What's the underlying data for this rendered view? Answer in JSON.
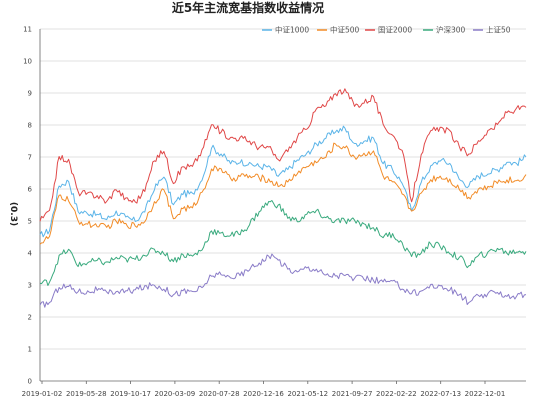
{
  "chart_data": {
    "type": "line",
    "title": "近5年主流宽基指数收益情况",
    "xlabel": "",
    "ylabel": "(0.3)",
    "ylim": [
      0,
      11
    ],
    "yticks": [
      0,
      1,
      2,
      3,
      4,
      5,
      6,
      7,
      8,
      9,
      10,
      11
    ],
    "grid": true,
    "legend_position": "top-right",
    "x_tick_labels": [
      "2019-01-02",
      "2019-05-28",
      "2019-10-17",
      "2020-03-09",
      "2020-07-28",
      "2020-12-16",
      "2021-05-12",
      "2021-09-27",
      "2022-02-22",
      "2022-07-13",
      "2022-12-01"
    ],
    "x": [
      "2019-01",
      "2019-02",
      "2019-03",
      "2019-04",
      "2019-05",
      "2019-06",
      "2019-07",
      "2019-08",
      "2019-09",
      "2019-10",
      "2019-11",
      "2019-12",
      "2020-01",
      "2020-02",
      "2020-03",
      "2020-04",
      "2020-05",
      "2020-06",
      "2020-07",
      "2020-08",
      "2020-09",
      "2020-10",
      "2020-11",
      "2020-12",
      "2021-01",
      "2021-02",
      "2021-03",
      "2021-04",
      "2021-05",
      "2021-06",
      "2021-07",
      "2021-08",
      "2021-09",
      "2021-10",
      "2021-11",
      "2021-12",
      "2022-01",
      "2022-02",
      "2022-03",
      "2022-04",
      "2022-05",
      "2022-06",
      "2022-07",
      "2022-08",
      "2022-09",
      "2022-10",
      "2022-11",
      "2022-12",
      "2023-01",
      "2023-02",
      "2023-03",
      "2023-04"
    ],
    "series": [
      {
        "name": "中证1000",
        "color": "#5bb4e8",
        "values": [
          4.55,
          4.7,
          6.1,
          6.25,
          5.3,
          5.25,
          5.2,
          5.05,
          5.3,
          5.1,
          5.0,
          5.3,
          6.0,
          6.4,
          5.5,
          5.85,
          5.85,
          6.3,
          7.3,
          7.1,
          6.8,
          6.85,
          6.8,
          6.7,
          6.7,
          6.4,
          6.6,
          6.9,
          7.1,
          7.4,
          7.6,
          7.8,
          7.9,
          7.4,
          7.5,
          7.6,
          6.8,
          6.6,
          6.2,
          5.3,
          6.2,
          6.7,
          6.9,
          6.8,
          6.3,
          6.1,
          6.4,
          6.5,
          6.6,
          6.85,
          6.8,
          7.0
        ]
      },
      {
        "name": "中证500",
        "color": "#f28c28",
        "values": [
          4.3,
          4.5,
          5.8,
          5.65,
          5.0,
          4.9,
          4.85,
          4.8,
          5.0,
          4.9,
          4.85,
          5.0,
          5.6,
          6.0,
          5.05,
          5.4,
          5.4,
          5.9,
          6.6,
          6.65,
          6.3,
          6.4,
          6.4,
          6.35,
          6.3,
          6.1,
          6.2,
          6.5,
          6.7,
          6.85,
          7.0,
          7.4,
          7.3,
          7.0,
          7.1,
          7.2,
          6.4,
          6.2,
          5.85,
          5.3,
          5.85,
          6.3,
          6.4,
          6.3,
          6.0,
          5.75,
          6.0,
          6.05,
          6.2,
          6.3,
          6.25,
          6.45
        ]
      },
      {
        "name": "国证2000",
        "color": "#e04848",
        "values": [
          5.0,
          5.3,
          7.0,
          6.9,
          5.9,
          5.85,
          5.8,
          5.6,
          6.0,
          5.7,
          5.6,
          5.95,
          6.9,
          7.2,
          6.2,
          6.7,
          6.7,
          7.2,
          8.0,
          7.8,
          7.6,
          7.6,
          7.5,
          7.3,
          7.3,
          6.9,
          7.2,
          7.6,
          7.9,
          8.5,
          8.6,
          9.0,
          9.1,
          8.6,
          8.7,
          8.9,
          8.0,
          7.7,
          7.2,
          5.6,
          7.1,
          7.8,
          7.9,
          7.8,
          7.3,
          7.1,
          7.5,
          7.8,
          8.0,
          8.4,
          8.5,
          8.55
        ]
      },
      {
        "name": "沪深300",
        "color": "#3aaa7e",
        "values": [
          3.05,
          3.1,
          3.9,
          4.1,
          3.6,
          3.7,
          3.75,
          3.7,
          3.85,
          3.8,
          3.8,
          3.95,
          4.1,
          4.0,
          3.75,
          3.95,
          3.9,
          4.1,
          4.7,
          4.6,
          4.55,
          4.6,
          4.9,
          5.3,
          5.6,
          5.5,
          5.1,
          5.0,
          5.2,
          5.3,
          5.1,
          5.0,
          5.0,
          5.0,
          4.9,
          4.8,
          4.5,
          4.6,
          4.3,
          3.9,
          4.0,
          4.3,
          4.2,
          4.0,
          3.85,
          3.6,
          3.9,
          4.0,
          4.15,
          4.0,
          4.05,
          4.05
        ]
      },
      {
        "name": "上证50",
        "color": "#8a7cc8",
        "values": [
          2.35,
          2.45,
          2.95,
          2.95,
          2.8,
          2.8,
          2.85,
          2.75,
          2.8,
          2.8,
          2.85,
          2.95,
          3.0,
          2.9,
          2.7,
          2.8,
          2.8,
          2.9,
          3.3,
          3.3,
          3.25,
          3.3,
          3.5,
          3.7,
          3.9,
          3.8,
          3.5,
          3.4,
          3.55,
          3.5,
          3.3,
          3.3,
          3.3,
          3.2,
          3.2,
          3.15,
          3.1,
          3.1,
          2.9,
          2.75,
          2.8,
          3.0,
          2.95,
          2.85,
          2.7,
          2.45,
          2.65,
          2.7,
          2.8,
          2.65,
          2.65,
          2.7
        ]
      }
    ]
  }
}
